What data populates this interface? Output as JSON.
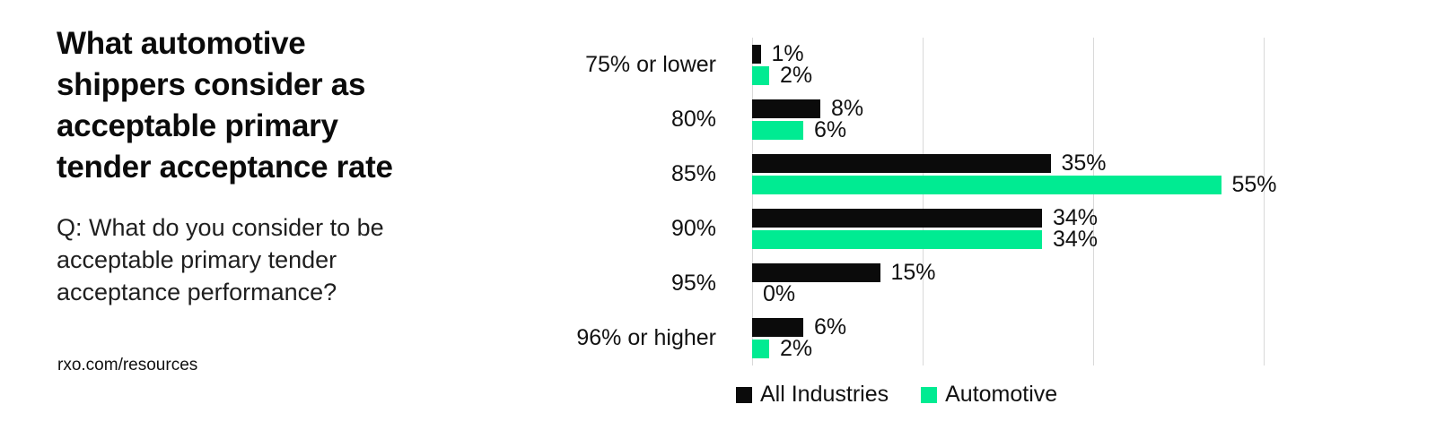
{
  "panel": {
    "title": "What automotive\nshippers consider as\nacceptable primary\ntender acceptance rate",
    "subtitle": "Q: What do you consider to be\nacceptable primary tender\nacceptance performance?",
    "footer": "rxo.com/resources"
  },
  "colors": {
    "all_industries": "#0b0b0b",
    "automotive": "#00eb92",
    "gridline": "#d9d9d9",
    "text": "#111111"
  },
  "chart_data": {
    "type": "bar",
    "orientation": "horizontal",
    "categories": [
      "75% or lower",
      "80%",
      "85%",
      "90%",
      "95%",
      "96% or higher"
    ],
    "series": [
      {
        "name": "All Industries",
        "color": "#0b0b0b",
        "values": [
          1,
          8,
          35,
          34,
          15,
          6
        ]
      },
      {
        "name": "Automotive",
        "color": "#00eb92",
        "values": [
          2,
          6,
          55,
          34,
          0,
          2
        ]
      }
    ],
    "value_suffix": "%",
    "xlim": [
      0,
      60
    ],
    "gridline_step": 20,
    "grid": true,
    "legend_position": "bottom"
  }
}
